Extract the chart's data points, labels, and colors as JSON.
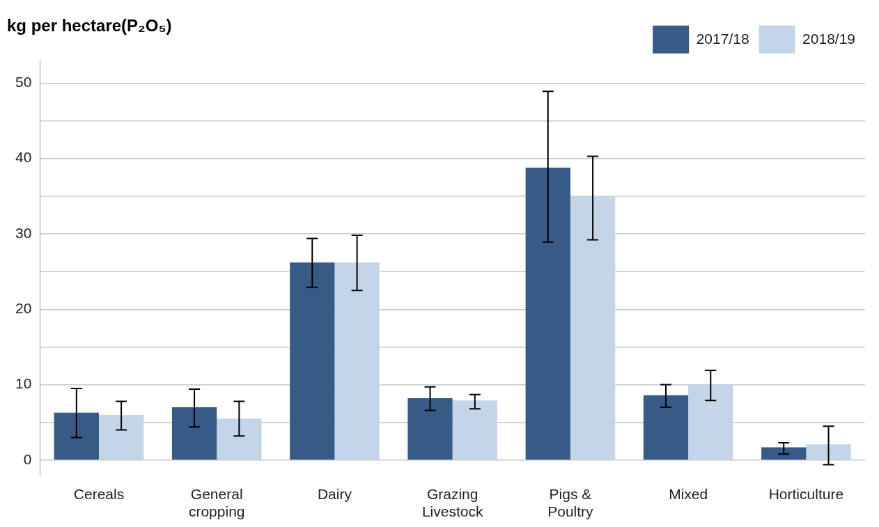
{
  "chart_data": {
    "type": "bar",
    "title": "kg per hectare(P₂O₅)",
    "categories": [
      "Cereals",
      "General\ncropping",
      "Dairy",
      "Grazing\nLivestock",
      "Pigs &\nPoultry",
      "Mixed",
      "Horticulture"
    ],
    "series": [
      {
        "name": "2017/18",
        "color": "#375a87",
        "values": [
          6.3,
          7.0,
          26.2,
          8.2,
          38.8,
          8.6,
          1.7
        ],
        "errors": [
          [
            3.0,
            9.5
          ],
          [
            4.4,
            9.4
          ],
          [
            22.9,
            29.4
          ],
          [
            6.6,
            9.7
          ],
          [
            28.9,
            48.9
          ],
          [
            7.0,
            10.0
          ],
          [
            0.8,
            2.3
          ]
        ]
      },
      {
        "name": "2018/19",
        "color": "#c5d5e8",
        "values": [
          6.0,
          5.5,
          26.2,
          7.9,
          35.0,
          10.0,
          2.1
        ],
        "errors": [
          [
            4.0,
            7.8
          ],
          [
            3.2,
            7.8
          ],
          [
            22.5,
            29.8
          ],
          [
            6.8,
            8.7
          ],
          [
            29.2,
            40.3
          ],
          [
            7.9,
            11.9
          ],
          [
            -0.6,
            4.5
          ]
        ]
      }
    ],
    "ylim": [
      -2,
      53
    ],
    "yticks": [
      0,
      {
        "value": 5,
        "label": null
      },
      10,
      {
        "value": 15,
        "label": null
      },
      20,
      {
        "value": 25,
        "label": null
      },
      30,
      {
        "value": 35,
        "label": null
      },
      40,
      {
        "value": 45,
        "label": null
      },
      50
    ],
    "grid": "y",
    "legend": "top right"
  }
}
